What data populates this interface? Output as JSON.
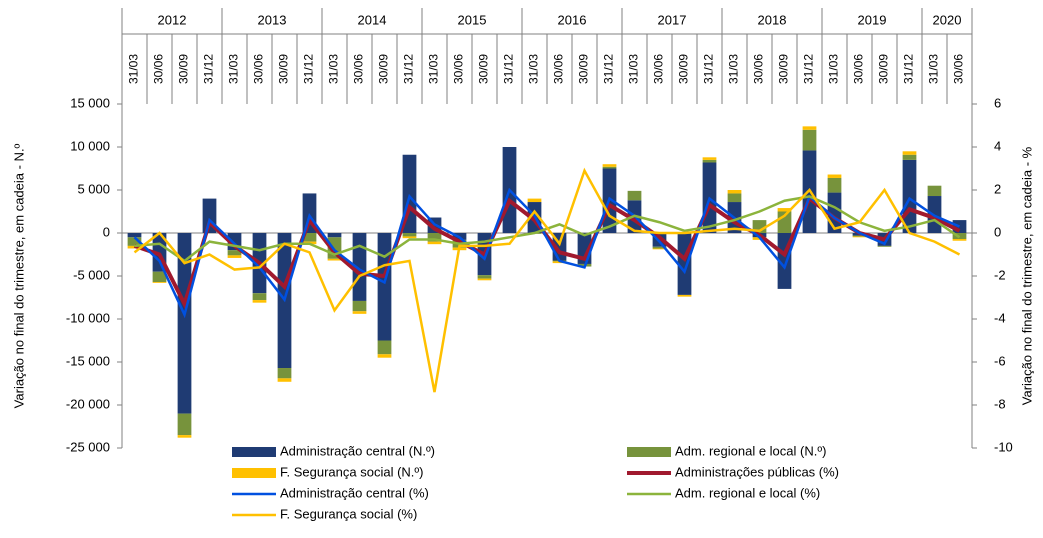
{
  "chart_data": {
    "type": "bar_line",
    "years": [
      "2012",
      "2013",
      "2014",
      "2015",
      "2016",
      "2017",
      "2018",
      "2019",
      "2020"
    ],
    "categories": [
      "31/03",
      "30/06",
      "30/09",
      "31/12",
      "31/03",
      "30/06",
      "30/09",
      "31/12",
      "31/03",
      "30/06",
      "30/09",
      "31/12",
      "31/03",
      "30/06",
      "30/09",
      "31/12",
      "31/03",
      "30/06",
      "30/09",
      "31/12",
      "31/03",
      "30/06",
      "30/09",
      "31/12",
      "31/03",
      "30/06",
      "30/09",
      "31/12",
      "31/03",
      "30/06",
      "30/09",
      "31/12",
      "31/03",
      "30/06"
    ],
    "y_label": "Variação no final do trimestre, em cadeia  - N.º",
    "y2_label": "Variação no final do trimestre, em cadeia  - %",
    "ylim": [
      -25000,
      15000
    ],
    "yticks": [
      {
        "value": 15000,
        "label": "15 000"
      },
      {
        "value": 10000,
        "label": "10 000"
      },
      {
        "value": 5000,
        "label": "5 000"
      },
      0,
      {
        "value": -5000,
        "label": "-5 000"
      },
      {
        "value": -10000,
        "label": "-10 000"
      },
      {
        "value": -15000,
        "label": "-15 000"
      },
      {
        "value": -20000,
        "label": "-20 000"
      },
      {
        "value": -25000,
        "label": "-25 000"
      }
    ],
    "y2lim": [
      -10,
      6
    ],
    "y2ticks": [
      6,
      4,
      2,
      0,
      -2,
      -4,
      -6,
      -8,
      -10
    ],
    "series": [
      {
        "name": "Administração central (N.º)",
        "kind": "bar",
        "color": "#1f3b73",
        "values": [
          -500,
          -4500,
          -21000,
          4000,
          -2000,
          -7000,
          -15700,
          4600,
          -500,
          -7900,
          -12500,
          9100,
          1800,
          -800,
          -4900,
          10000,
          3600,
          -3200,
          -3600,
          7500,
          3800,
          -1600,
          -7200,
          8200,
          3600,
          -500,
          -6500,
          9600,
          4700,
          -300,
          -1500,
          8500,
          4300,
          1500
        ]
      },
      {
        "name": "Adm. regional e local (N.º)",
        "kind": "bar",
        "color": "#77933c",
        "values": [
          -1000,
          -1200,
          -2500,
          0,
          -600,
          -800,
          -1200,
          -1000,
          -2500,
          -1200,
          -1600,
          -400,
          -1000,
          -900,
          -400,
          0,
          -100,
          -100,
          -300,
          200,
          1100,
          -200,
          0,
          300,
          1000,
          1500,
          2500,
          2400,
          1700,
          -100,
          -100,
          600,
          1200,
          -700
        ]
      },
      {
        "name": "F. Segurança social  (N.º)",
        "kind": "bar",
        "color": "#ffc000",
        "values": [
          -300,
          -100,
          -300,
          0,
          -300,
          -300,
          -400,
          -300,
          -200,
          -300,
          -400,
          -200,
          -300,
          -300,
          -200,
          0,
          400,
          -200,
          0,
          300,
          0,
          -100,
          -200,
          300,
          400,
          -300,
          400,
          400,
          400,
          -100,
          0,
          400,
          0,
          -200
        ]
      },
      {
        "name": "Administrações públicas (%)",
        "kind": "line",
        "axis": "y2",
        "color": "#a0192e",
        "values": [
          -0.6,
          -1.0,
          -3.3,
          0.5,
          -0.6,
          -1.4,
          -2.5,
          0.6,
          -0.9,
          -1.9,
          -2.0,
          1.2,
          0.2,
          -0.4,
          -1.0,
          1.5,
          0.6,
          -0.9,
          -1.2,
          1.3,
          0.6,
          -0.2,
          -1.2,
          1.3,
          0.5,
          -0.1,
          -1.0,
          1.6,
          0.7,
          0.0,
          -0.3,
          1.1,
          0.7,
          0.1
        ]
      },
      {
        "name": "Administração central  (%)",
        "kind": "line",
        "axis": "y2",
        "color": "#0050e0",
        "values": [
          -0.2,
          -1.3,
          -3.8,
          0.6,
          -0.5,
          -1.6,
          -3.1,
          0.8,
          -0.8,
          -1.7,
          -2.3,
          1.7,
          0.4,
          -0.2,
          -1.2,
          2.0,
          0.8,
          -1.3,
          -1.6,
          1.6,
          0.8,
          -0.4,
          -1.8,
          1.6,
          0.7,
          -0.2,
          -1.6,
          1.7,
          0.7,
          0.0,
          -0.5,
          1.6,
          0.8,
          0.3
        ]
      },
      {
        "name": "Adm. regional e local (%)",
        "kind": "line",
        "axis": "y2",
        "color": "#8cb43c",
        "values": [
          -0.6,
          -0.5,
          -1.3,
          -0.4,
          -0.6,
          -0.8,
          -0.5,
          -0.5,
          -1.0,
          -0.6,
          -1.1,
          -0.3,
          -0.3,
          -0.5,
          -0.4,
          -0.2,
          0.0,
          0.4,
          -0.1,
          0.3,
          0.8,
          0.5,
          0.1,
          0.3,
          0.6,
          1.0,
          1.5,
          1.7,
          1.2,
          0.5,
          0.1,
          0.3,
          0.6,
          -0.2
        ]
      },
      {
        "name": "F. Segurança social  (%)",
        "kind": "line",
        "axis": "y2",
        "color": "#ffc000",
        "values": [
          -0.9,
          0.0,
          -1.4,
          -1.0,
          -1.7,
          -1.6,
          -0.5,
          -0.9,
          -3.6,
          -2.0,
          -1.5,
          -1.3,
          -7.4,
          -0.6,
          -0.6,
          -0.5,
          1.0,
          -0.5,
          2.9,
          0.8,
          0.1,
          0.0,
          0.0,
          0.1,
          0.2,
          0.1,
          0.8,
          2.0,
          0.2,
          0.5,
          2.0,
          0.0,
          -0.4,
          -1.0
        ]
      }
    ]
  }
}
